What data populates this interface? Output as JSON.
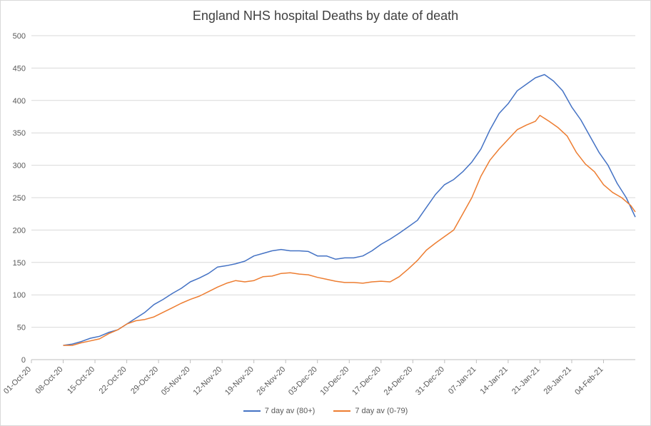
{
  "chart_data": {
    "type": "line",
    "title": "England NHS hospital Deaths by date of death",
    "xlabel": "",
    "ylabel": "",
    "ylim": [
      0,
      500
    ],
    "yticks": [
      0,
      50,
      100,
      150,
      200,
      250,
      300,
      350,
      400,
      450,
      500
    ],
    "x_tick_labels": [
      "01-Oct-20",
      "08-Oct-20",
      "15-Oct-20",
      "22-Oct-20",
      "29-Oct-20",
      "05-Nov-20",
      "12-Nov-20",
      "19-Nov-20",
      "26-Nov-20",
      "03-Dec-20",
      "10-Dec-20",
      "17-Dec-20",
      "24-Dec-20",
      "31-Dec-20",
      "07-Jan-21",
      "14-Jan-21",
      "21-Jan-21",
      "28-Jan-21",
      "04-Feb-21"
    ],
    "x_start": "01-Oct-20",
    "x_end": "11-Feb-21",
    "grid": true,
    "legend_position": "bottom",
    "series": [
      {
        "name": "7 day av (80+)",
        "color": "#4472c4",
        "points": [
          [
            "08-Oct-20",
            22
          ],
          [
            "10-Oct-20",
            24
          ],
          [
            "12-Oct-20",
            28
          ],
          [
            "14-Oct-20",
            33
          ],
          [
            "16-Oct-20",
            36
          ],
          [
            "18-Oct-20",
            42
          ],
          [
            "20-Oct-20",
            46
          ],
          [
            "22-Oct-20",
            55
          ],
          [
            "24-Oct-20",
            64
          ],
          [
            "26-Oct-20",
            73
          ],
          [
            "28-Oct-20",
            85
          ],
          [
            "30-Oct-20",
            93
          ],
          [
            "01-Nov-20",
            102
          ],
          [
            "03-Nov-20",
            110
          ],
          [
            "05-Nov-20",
            120
          ],
          [
            "07-Nov-20",
            126
          ],
          [
            "09-Nov-20",
            133
          ],
          [
            "11-Nov-20",
            143
          ],
          [
            "13-Nov-20",
            145
          ],
          [
            "15-Nov-20",
            148
          ],
          [
            "17-Nov-20",
            152
          ],
          [
            "19-Nov-20",
            160
          ],
          [
            "21-Nov-20",
            164
          ],
          [
            "23-Nov-20",
            168
          ],
          [
            "25-Nov-20",
            170
          ],
          [
            "27-Nov-20",
            168
          ],
          [
            "29-Nov-20",
            168
          ],
          [
            "01-Dec-20",
            167
          ],
          [
            "03-Dec-20",
            160
          ],
          [
            "05-Dec-20",
            160
          ],
          [
            "07-Dec-20",
            155
          ],
          [
            "09-Dec-20",
            157
          ],
          [
            "11-Dec-20",
            157
          ],
          [
            "13-Dec-20",
            160
          ],
          [
            "15-Dec-20",
            168
          ],
          [
            "17-Dec-20",
            178
          ],
          [
            "19-Dec-20",
            186
          ],
          [
            "21-Dec-20",
            195
          ],
          [
            "23-Dec-20",
            205
          ],
          [
            "25-Dec-20",
            215
          ],
          [
            "27-Dec-20",
            235
          ],
          [
            "29-Dec-20",
            255
          ],
          [
            "31-Dec-20",
            270
          ],
          [
            "02-Jan-21",
            278
          ],
          [
            "04-Jan-21",
            290
          ],
          [
            "06-Jan-21",
            305
          ],
          [
            "08-Jan-21",
            325
          ],
          [
            "10-Jan-21",
            355
          ],
          [
            "12-Jan-21",
            380
          ],
          [
            "14-Jan-21",
            395
          ],
          [
            "16-Jan-21",
            415
          ],
          [
            "18-Jan-21",
            425
          ],
          [
            "20-Jan-21",
            435
          ],
          [
            "22-Jan-21",
            440
          ],
          [
            "24-Jan-21",
            430
          ],
          [
            "26-Jan-21",
            415
          ],
          [
            "28-Jan-21",
            390
          ],
          [
            "30-Jan-21",
            370
          ],
          [
            "01-Feb-21",
            345
          ],
          [
            "03-Feb-21",
            320
          ],
          [
            "05-Feb-21",
            300
          ],
          [
            "07-Feb-21",
            272
          ],
          [
            "09-Feb-21",
            250
          ],
          [
            "11-Feb-21",
            220
          ]
        ]
      },
      {
        "name": "7 day av (0-79)",
        "color": "#ed7d31",
        "points": [
          [
            "08-Oct-20",
            22
          ],
          [
            "10-Oct-20",
            22
          ],
          [
            "12-Oct-20",
            26
          ],
          [
            "14-Oct-20",
            29
          ],
          [
            "16-Oct-20",
            32
          ],
          [
            "18-Oct-20",
            40
          ],
          [
            "20-Oct-20",
            46
          ],
          [
            "22-Oct-20",
            55
          ],
          [
            "24-Oct-20",
            60
          ],
          [
            "26-Oct-20",
            62
          ],
          [
            "28-Oct-20",
            66
          ],
          [
            "30-Oct-20",
            73
          ],
          [
            "01-Nov-20",
            80
          ],
          [
            "03-Nov-20",
            87
          ],
          [
            "05-Nov-20",
            93
          ],
          [
            "07-Nov-20",
            98
          ],
          [
            "09-Nov-20",
            105
          ],
          [
            "11-Nov-20",
            112
          ],
          [
            "13-Nov-20",
            118
          ],
          [
            "15-Nov-20",
            122
          ],
          [
            "17-Nov-20",
            120
          ],
          [
            "19-Nov-20",
            122
          ],
          [
            "21-Nov-20",
            128
          ],
          [
            "23-Nov-20",
            129
          ],
          [
            "25-Nov-20",
            133
          ],
          [
            "27-Nov-20",
            134
          ],
          [
            "29-Nov-20",
            132
          ],
          [
            "01-Dec-20",
            131
          ],
          [
            "03-Dec-20",
            127
          ],
          [
            "05-Dec-20",
            124
          ],
          [
            "07-Dec-20",
            121
          ],
          [
            "09-Dec-20",
            119
          ],
          [
            "11-Dec-20",
            119
          ],
          [
            "13-Dec-20",
            118
          ],
          [
            "15-Dec-20",
            120
          ],
          [
            "17-Dec-20",
            121
          ],
          [
            "19-Dec-20",
            120
          ],
          [
            "21-Dec-20",
            128
          ],
          [
            "23-Dec-20",
            140
          ],
          [
            "25-Dec-20",
            153
          ],
          [
            "27-Dec-20",
            169
          ],
          [
            "29-Dec-20",
            180
          ],
          [
            "31-Dec-20",
            190
          ],
          [
            "02-Jan-21",
            200
          ],
          [
            "04-Jan-21",
            225
          ],
          [
            "06-Jan-21",
            250
          ],
          [
            "08-Jan-21",
            283
          ],
          [
            "10-Jan-21",
            308
          ],
          [
            "12-Jan-21",
            325
          ],
          [
            "14-Jan-21",
            340
          ],
          [
            "16-Jan-21",
            355
          ],
          [
            "18-Jan-21",
            362
          ],
          [
            "20-Jan-21",
            368
          ],
          [
            "21-Jan-21",
            377
          ],
          [
            "23-Jan-21",
            368
          ],
          [
            "25-Jan-21",
            358
          ],
          [
            "27-Jan-21",
            345
          ],
          [
            "29-Jan-21",
            320
          ],
          [
            "31-Jan-21",
            302
          ],
          [
            "02-Feb-21",
            290
          ],
          [
            "04-Feb-21",
            270
          ],
          [
            "06-Feb-21",
            258
          ],
          [
            "08-Feb-21",
            250
          ],
          [
            "10-Feb-21",
            238
          ],
          [
            "11-Feb-21",
            228
          ]
        ]
      }
    ]
  }
}
